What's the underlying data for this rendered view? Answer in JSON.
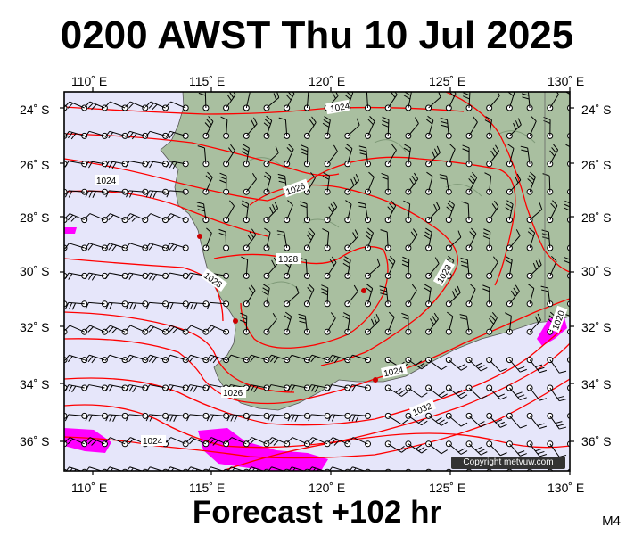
{
  "title": "0200 AWST Thu 10 Jul 2025",
  "subtitle": "Forecast +102 hr",
  "model_code": "M4",
  "copyright": "Copyright metvuw.com",
  "colors": {
    "ocean": "#e6e6fa",
    "land": "#a9bfa0",
    "isobar": "#ff0000",
    "rain": "#ff00ff",
    "frame": "#000000"
  },
  "lon_ticks": [
    "110˚ E",
    "115˚ E",
    "120˚ E",
    "125˚ E",
    "130˚ E"
  ],
  "lat_ticks": [
    "24˚ S",
    "26˚ S",
    "28˚ S",
    "30˚ S",
    "32˚ S",
    "34˚ S",
    "36˚ S"
  ],
  "isobar_labels": [
    "1024",
    "1024",
    "1026",
    "1028",
    "1028",
    "1028",
    "1026",
    "1024",
    "1032",
    "1024",
    "1020"
  ]
}
